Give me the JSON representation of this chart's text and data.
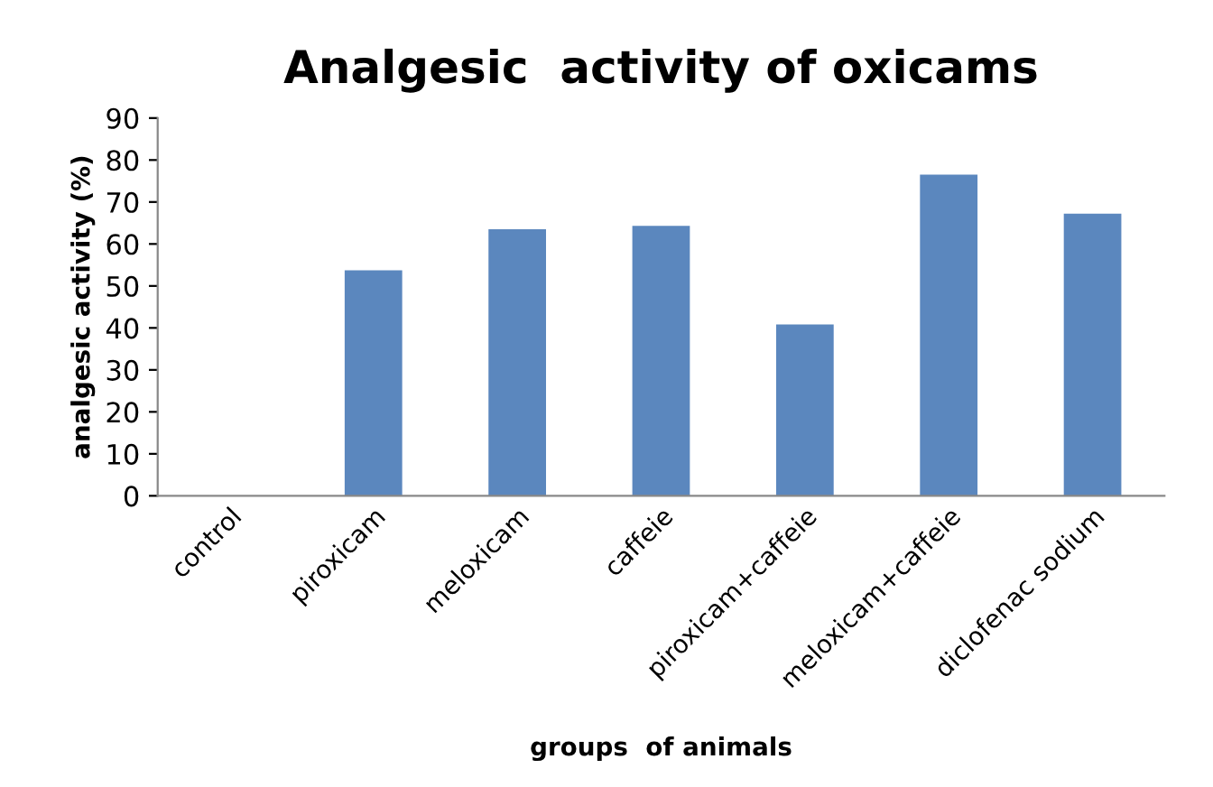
{
  "chart_data": {
    "type": "bar",
    "title": "Analgesic  activity of oxicams",
    "xlabel": "groups  of animals",
    "ylabel": "analgesic activity (%)",
    "categories": [
      "control",
      "piroxicam",
      "meloxicam",
      "caffeie",
      "piroxicam+caffeie",
      "meloxicam+caffeie",
      "diclofenac sodium"
    ],
    "values": [
      0,
      53.7,
      63.5,
      64.3,
      40.8,
      76.5,
      67.2
    ],
    "color": "#5b87be",
    "ylim": [
      0,
      90
    ],
    "yticks": [
      0,
      10,
      20,
      30,
      40,
      50,
      60,
      70,
      80,
      90
    ],
    "grid": false,
    "legend": false
  }
}
